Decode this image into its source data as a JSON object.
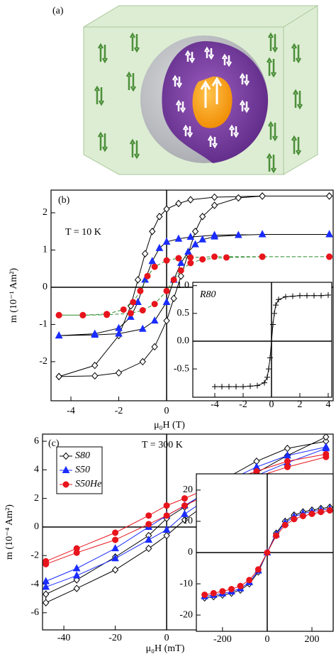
{
  "panel_a": {
    "label": "(a)"
  },
  "chart_data": [
    {
      "type": "line",
      "label": "(b)",
      "annotation": "T = 10 K",
      "ylabel": "m (10⁻¹ Am²)",
      "xlabel": "μ₀H (T)",
      "xlim": [
        -4.83,
        6.96
      ],
      "ylim": [
        -3.05,
        2.61
      ],
      "xticks": [
        -4,
        -2,
        0
      ],
      "yticks": [
        2,
        1,
        0,
        -1,
        -2
      ],
      "series": [
        {
          "color": "#000000",
          "fill": "#ffffff",
          "marker": "diamond",
          "line_color": "#000000",
          "x": [
            6.8,
            4,
            2,
            1,
            0.5,
            0,
            -0.3,
            -0.6,
            -0.9,
            -1.2,
            -1.5,
            -2,
            -3,
            -4.5,
            -4.5,
            -3,
            -2,
            -1,
            -0.5,
            0,
            0.3,
            0.6,
            0.9,
            1.2,
            1.5,
            2,
            3,
            4,
            6.8
          ],
          "values": [
            2.45,
            2.45,
            2.42,
            2.35,
            2.25,
            2.1,
            1.9,
            1.5,
            0.9,
            0.2,
            -0.5,
            -1.3,
            -2.1,
            -2.4,
            -2.4,
            -2.38,
            -2.3,
            -2.0,
            -1.6,
            -0.9,
            -0.3,
            0.3,
            0.9,
            1.5,
            1.9,
            2.2,
            2.4,
            2.45,
            2.45
          ]
        },
        {
          "color": "#1a2cff",
          "fill": "#1a2cff",
          "marker": "triangle",
          "line_color": "#000000",
          "x": [
            6.8,
            4,
            2,
            1,
            0.5,
            0,
            -0.3,
            -0.6,
            -0.9,
            -1.2,
            -1.5,
            -2,
            -3,
            -4.5,
            -4.5,
            -3,
            -2,
            -1,
            -0.5,
            0,
            0.3,
            0.6,
            0.9,
            1.2,
            1.5,
            2,
            3,
            4,
            6.8
          ],
          "values": [
            1.42,
            1.42,
            1.4,
            1.35,
            1.3,
            1.22,
            1.05,
            0.7,
            0.2,
            -0.4,
            -0.8,
            -1.1,
            -1.25,
            -1.3,
            -1.3,
            -1.28,
            -1.25,
            -1.12,
            -0.9,
            -0.4,
            0.2,
            0.65,
            0.95,
            1.15,
            1.28,
            1.36,
            1.4,
            1.42,
            1.42
          ]
        },
        {
          "color": "#e8141c",
          "fill": "#e8141c",
          "marker": "circle",
          "line_color": "#2a8a2a",
          "line_dash": true,
          "x": [
            6.8,
            4,
            2,
            1,
            0.5,
            0,
            -0.5,
            -0.8,
            -1.1,
            -1.4,
            -1.8,
            -2.5,
            -3.5,
            -4.5,
            -4.5,
            -3.5,
            -2.5,
            -1.5,
            -1,
            -0.5,
            0,
            0.3,
            0.6,
            1,
            1.5,
            2.5,
            4,
            6.8
          ],
          "values": [
            0.82,
            0.82,
            0.82,
            0.8,
            0.78,
            0.72,
            0.55,
            0.3,
            -0.1,
            -0.4,
            -0.6,
            -0.72,
            -0.75,
            -0.75,
            -0.75,
            -0.75,
            -0.74,
            -0.7,
            -0.62,
            -0.45,
            -0.1,
            0.2,
            0.45,
            0.65,
            0.75,
            0.8,
            0.82,
            0.82
          ]
        }
      ]
    },
    {
      "type": "line",
      "annotation": "R80",
      "xlim": [
        -5.55,
        4.25
      ],
      "ylim": [
        -1.01,
        1.06
      ],
      "xticks": [
        -4,
        -2,
        0,
        2,
        4
      ],
      "yticks": [
        {
          "value": 1,
          "label": "1.0"
        },
        {
          "value": 0.5,
          "label": "0.5"
        },
        {
          "value": 0,
          "label": "0.0"
        },
        {
          "value": -0.5,
          "label": "-0.5"
        }
      ],
      "series": [
        {
          "color": "#000000",
          "fill": "#000000",
          "marker": "plus",
          "line_color": "#000000",
          "x": [
            -4,
            -3.5,
            -3,
            -2.5,
            -2,
            -1.5,
            -1,
            -0.5,
            -0.3,
            -0.2,
            -0.1,
            0,
            0.1,
            0.2,
            0.3,
            0.5,
            1,
            1.5,
            2,
            2.5,
            3,
            3.5,
            4
          ],
          "values": [
            -0.82,
            -0.82,
            -0.82,
            -0.82,
            -0.82,
            -0.81,
            -0.8,
            -0.75,
            -0.65,
            -0.5,
            -0.3,
            0,
            0.3,
            0.5,
            0.65,
            0.75,
            0.8,
            0.81,
            0.82,
            0.82,
            0.82,
            0.82,
            0.83
          ]
        }
      ]
    },
    {
      "type": "line",
      "label": "(c)",
      "annotation": "T = 300 K",
      "ylabel": "m (10⁻⁴ Am²)",
      "xlabel": "μ₀H (mT)",
      "xlim": [
        -48.3,
        64.8
      ],
      "ylim": [
        -7.2,
        6.5
      ],
      "xticks": [
        -40,
        -20,
        0
      ],
      "yticks": [
        6,
        4,
        2,
        0,
        -2,
        -4,
        -6
      ],
      "legend": "upper left",
      "series": [
        {
          "name": "S80",
          "color": "#000000",
          "fill": "#ffffff",
          "marker": "diamond",
          "line_color": "#000000",
          "x": [
            62,
            47,
            35,
            20,
            7,
            0,
            -7,
            -20,
            -35,
            -47,
            -47,
            -35,
            -20,
            -7,
            0,
            7,
            20,
            35,
            47,
            62
          ],
          "values": [
            6.0,
            5.5,
            4.6,
            3.1,
            1.4,
            0.6,
            -0.6,
            -2.1,
            -3.7,
            -4.7,
            -5.3,
            -4.3,
            -3.0,
            -1.5,
            -0.6,
            0.5,
            2.2,
            3.8,
            5.0,
            6.3
          ]
        },
        {
          "name": "S50",
          "color": "#1a2cff",
          "fill": "#1a2cff",
          "marker": "triangle",
          "line_color": "#1a2cff",
          "x": [
            62,
            47,
            35,
            20,
            7,
            0,
            -7,
            -20,
            -35,
            -47,
            -47,
            -35,
            -20,
            -7,
            0,
            7,
            20,
            35,
            47,
            62
          ],
          "values": [
            5.6,
            5.0,
            4.2,
            2.9,
            1.5,
            0.8,
            0.0,
            -1.5,
            -2.9,
            -3.8,
            -4.2,
            -3.4,
            -2.2,
            -0.9,
            -0.2,
            0.9,
            2.5,
            3.6,
            4.5,
            5.5
          ]
        },
        {
          "name": "S50He",
          "color": "#e8141c",
          "fill": "#e8141c",
          "marker": "circle",
          "line_color": "#e8141c",
          "x": [
            62,
            47,
            35,
            20,
            7,
            0,
            -7,
            -20,
            -35,
            -47,
            -47,
            -35,
            -20,
            -7,
            0,
            7,
            20,
            35,
            47,
            62
          ],
          "values": [
            5.1,
            4.6,
            3.9,
            3.0,
            2.0,
            1.5,
            0.8,
            -0.4,
            -1.5,
            -2.4,
            -2.6,
            -1.8,
            -0.9,
            0.2,
            0.8,
            1.5,
            2.6,
            3.5,
            4.2,
            4.9
          ]
        }
      ]
    },
    {
      "type": "line",
      "xlim": [
        -317,
        295
      ],
      "ylim": [
        -25.2,
        25.2
      ],
      "xticks": [
        -200,
        0,
        200
      ],
      "yticks": [
        20,
        10,
        0,
        -10,
        -20
      ],
      "series": [
        {
          "color": "#000000",
          "fill": "#ffffff",
          "marker": "diamond",
          "line_color": "#000000",
          "x": [
            -280,
            -240,
            -200,
            -160,
            -120,
            -80,
            -40,
            0,
            40,
            80,
            120,
            160,
            200,
            240,
            280
          ],
          "values": [
            -14.5,
            -14.1,
            -13.6,
            -13,
            -12,
            -10,
            -6.2,
            0,
            6.2,
            10,
            12,
            13,
            13.6,
            14.1,
            14.5
          ]
        },
        {
          "color": "#1a2cff",
          "fill": "#1a2cff",
          "marker": "triangle",
          "line_color": "#1a2cff",
          "x": [
            -280,
            -240,
            -200,
            -160,
            -120,
            -80,
            -40,
            0,
            40,
            80,
            120,
            160,
            200,
            240,
            280
          ],
          "values": [
            -14,
            -13.6,
            -13.1,
            -12.5,
            -11.5,
            -9.5,
            -5.8,
            0,
            5.8,
            9.5,
            11.5,
            12.5,
            13.1,
            13.6,
            14
          ]
        },
        {
          "color": "#e8141c",
          "fill": "#e8141c",
          "marker": "circle",
          "line_color": "#e8141c",
          "x": [
            -280,
            -240,
            -200,
            -160,
            -120,
            -80,
            -40,
            0,
            40,
            80,
            120,
            160,
            200,
            240,
            280
          ],
          "values": [
            -13.5,
            -13,
            -12.4,
            -11.7,
            -10.7,
            -8.8,
            -5.4,
            0,
            5.4,
            8.8,
            10.7,
            11.7,
            12.4,
            13,
            13.5
          ]
        }
      ]
    }
  ]
}
